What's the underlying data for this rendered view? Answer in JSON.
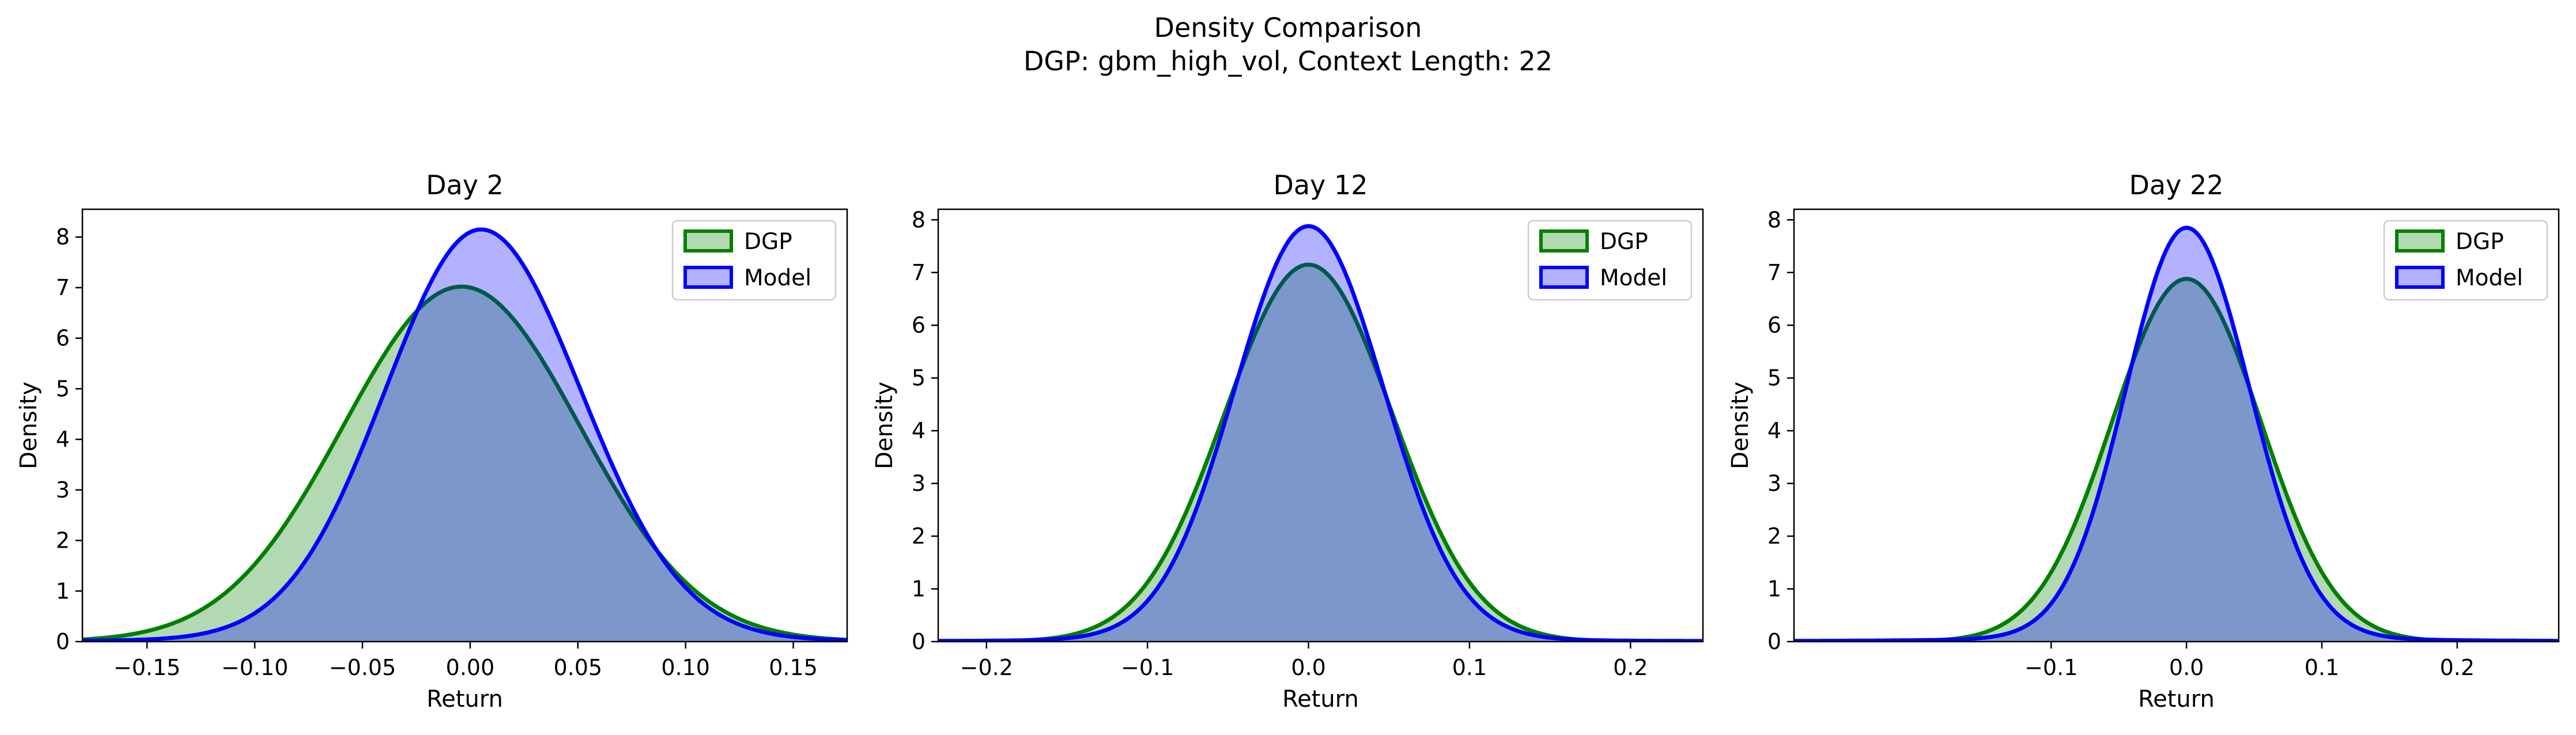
{
  "figure": {
    "title_line1": "Density Comparison",
    "title_line2": "DGP: gbm_high_vol, Context Length: 22"
  },
  "chart_data": [
    {
      "type": "area",
      "title": "Day 2",
      "xlabel": "Return",
      "ylabel": "Density",
      "xlim": [
        -0.18,
        0.175
      ],
      "ylim": [
        0,
        8.55
      ],
      "xticks": [
        -0.15,
        -0.1,
        -0.05,
        0.0,
        0.05,
        0.1,
        0.15
      ],
      "xtick_labels": [
        "−0.15",
        "−0.10",
        "−0.05",
        "0.00",
        "0.05",
        "0.10",
        "0.15"
      ],
      "yticks": [
        0,
        1,
        2,
        3,
        4,
        5,
        6,
        7,
        8
      ],
      "ytick_labels": [
        "0",
        "1",
        "2",
        "3",
        "4",
        "5",
        "6",
        "7",
        "8"
      ],
      "legend": [
        "DGP",
        "Model"
      ],
      "legend_position": "top-right",
      "series": [
        {
          "name": "DGP",
          "color": "#008000",
          "fill": "#90c890",
          "peak_x": -0.004,
          "peak_y": 7.02,
          "sigma_left": 0.055,
          "sigma_right": 0.055,
          "tail_weight": 0.0,
          "tail_width": 0.09
        },
        {
          "name": "Model",
          "color": "#0000ff",
          "fill": "#8080ff",
          "peak_x": 0.005,
          "peak_y": 8.15,
          "sigma_left": 0.045,
          "sigma_right": 0.047,
          "tail_weight": 0.035,
          "tail_width": 0.09
        }
      ]
    },
    {
      "type": "area",
      "title": "Day 12",
      "xlabel": "Return",
      "ylabel": "Density",
      "xlim": [
        -0.23,
        0.245
      ],
      "ylim": [
        0,
        8.2
      ],
      "xticks": [
        -0.2,
        -0.1,
        0.0,
        0.1,
        0.2
      ],
      "xtick_labels": [
        "−0.2",
        "−0.1",
        "0.0",
        "0.1",
        "0.2"
      ],
      "yticks": [
        0,
        1,
        2,
        3,
        4,
        5,
        6,
        7,
        8
      ],
      "ytick_labels": [
        "0",
        "1",
        "2",
        "3",
        "4",
        "5",
        "6",
        "7",
        "8"
      ],
      "legend": [
        "DGP",
        "Model"
      ],
      "legend_position": "top-right",
      "series": [
        {
          "name": "DGP",
          "color": "#008000",
          "fill": "#90c890",
          "peak_x": 0.0,
          "peak_y": 7.15,
          "sigma_left": 0.052,
          "sigma_right": 0.052,
          "tail_weight": 0.0,
          "tail_width": 0.1
        },
        {
          "name": "Model",
          "color": "#0000ff",
          "fill": "#8080ff",
          "peak_x": 0.0,
          "peak_y": 7.88,
          "sigma_left": 0.046,
          "sigma_right": 0.047,
          "tail_weight": 0.03,
          "tail_width": 0.11
        }
      ]
    },
    {
      "type": "area",
      "title": "Day 22",
      "xlabel": "Return",
      "ylabel": "Density",
      "xlim": [
        -0.29,
        0.275
      ],
      "ylim": [
        0,
        8.2
      ],
      "xticks": [
        -0.1,
        0.0,
        0.1,
        0.2
      ],
      "xtick_labels": [
        "−0.1",
        "0.0",
        "0.1",
        "0.2"
      ],
      "yticks": [
        0,
        1,
        2,
        3,
        4,
        5,
        6,
        7,
        8
      ],
      "ytick_labels": [
        "0",
        "1",
        "2",
        "3",
        "4",
        "5",
        "6",
        "7",
        "8"
      ],
      "legend": [
        "DGP",
        "Model"
      ],
      "legend_position": "top-right",
      "series": [
        {
          "name": "DGP",
          "color": "#008000",
          "fill": "#90c890",
          "peak_x": 0.0,
          "peak_y": 6.88,
          "sigma_left": 0.055,
          "sigma_right": 0.055,
          "tail_weight": 0.0,
          "tail_width": 0.1
        },
        {
          "name": "Model",
          "color": "#0000ff",
          "fill": "#8080ff",
          "peak_x": 0.0,
          "peak_y": 7.85,
          "sigma_left": 0.045,
          "sigma_right": 0.047,
          "tail_weight": 0.04,
          "tail_width": 0.12
        }
      ]
    }
  ]
}
